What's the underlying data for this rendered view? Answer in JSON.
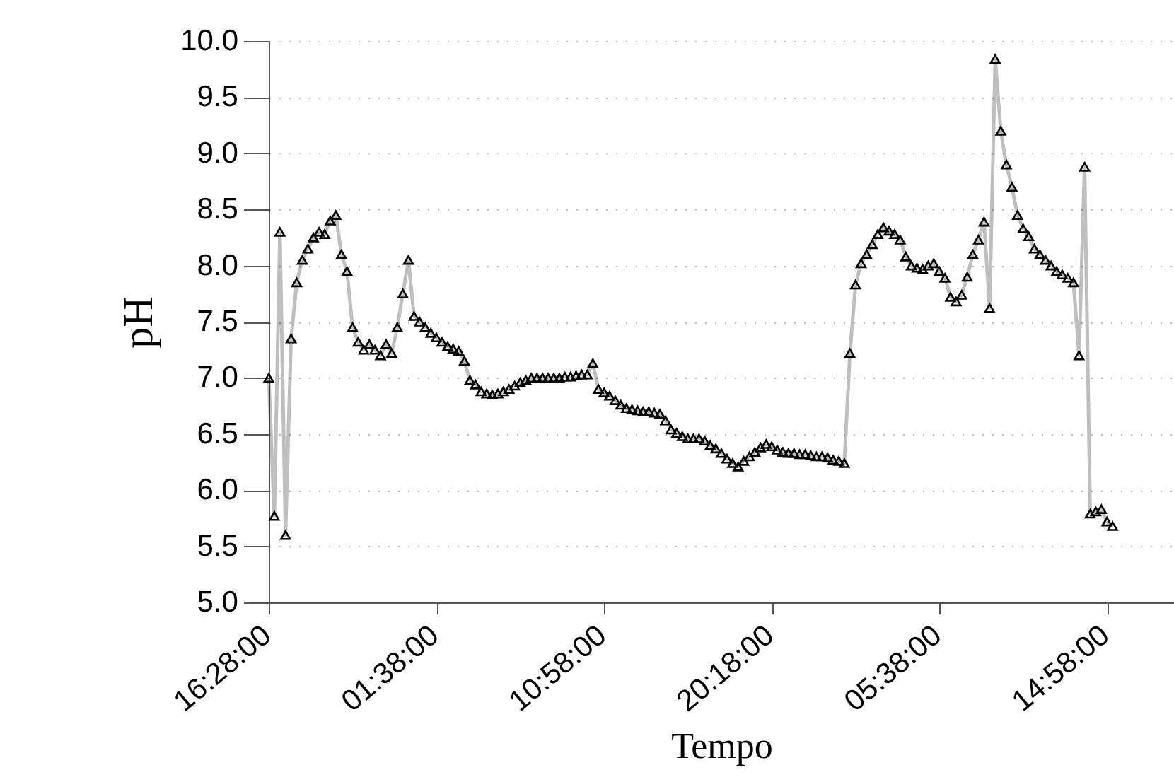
{
  "chart_data": {
    "type": "line",
    "xlabel": "Tempo",
    "ylabel": "pH",
    "categories": [
      "16:28:00",
      null,
      null,
      null,
      null,
      null,
      null,
      null,
      null,
      null,
      null,
      null,
      null,
      null,
      null,
      null,
      null,
      null,
      null,
      null,
      null,
      null,
      null,
      null,
      null,
      null,
      null,
      null,
      null,
      null,
      "01:38:00",
      null,
      null,
      null,
      null,
      null,
      null,
      null,
      null,
      null,
      null,
      null,
      null,
      null,
      null,
      null,
      null,
      null,
      null,
      null,
      null,
      null,
      null,
      null,
      null,
      null,
      null,
      null,
      null,
      null,
      "10:58:00",
      null,
      null,
      null,
      null,
      null,
      null,
      null,
      null,
      null,
      null,
      null,
      null,
      null,
      null,
      null,
      null,
      null,
      null,
      null,
      null,
      null,
      null,
      null,
      null,
      null,
      null,
      null,
      null,
      null,
      "20:18:00",
      null,
      null,
      null,
      null,
      null,
      null,
      null,
      null,
      null,
      null,
      null,
      null,
      null,
      null,
      null,
      null,
      null,
      null,
      null,
      null,
      null,
      null,
      null,
      null,
      null,
      null,
      null,
      null,
      null,
      "05:38:00",
      null,
      null,
      null,
      null,
      null,
      null,
      null,
      null,
      null,
      null,
      null,
      null,
      null,
      null,
      null,
      null,
      null,
      null,
      null,
      null,
      null,
      null,
      null,
      null,
      null,
      null,
      null,
      null,
      null,
      "14:58:00",
      null,
      null,
      null,
      null,
      null,
      null,
      null,
      null,
      null,
      null,
      null,
      null
    ],
    "series": [
      {
        "color": "#000000",
        "values": [
          7.0,
          5.77,
          8.3,
          5.6,
          7.35,
          7.85,
          8.05,
          8.15,
          8.25,
          8.3,
          8.28,
          8.4,
          8.45,
          8.1,
          7.95,
          7.45,
          7.32,
          7.25,
          7.3,
          7.25,
          7.2,
          7.3,
          7.22,
          7.45,
          7.75,
          8.05,
          7.55,
          7.5,
          7.45,
          7.4,
          7.36,
          7.32,
          7.28,
          7.26,
          7.24,
          7.15,
          6.98,
          6.94,
          6.88,
          6.86,
          6.85,
          6.86,
          6.88,
          6.9,
          6.93,
          6.96,
          6.98,
          7.0,
          7.0,
          7.0,
          7.0,
          7.0,
          7.0,
          7.01,
          7.01,
          7.02,
          7.03,
          7.03,
          7.13,
          6.9,
          6.87,
          6.84,
          6.8,
          6.76,
          6.73,
          6.72,
          6.71,
          6.7,
          6.7,
          6.69,
          6.68,
          6.62,
          6.54,
          6.51,
          6.48,
          6.46,
          6.46,
          6.46,
          6.44,
          6.4,
          6.37,
          6.33,
          6.28,
          6.24,
          6.21,
          6.26,
          6.3,
          6.34,
          6.38,
          6.41,
          6.39,
          6.36,
          6.34,
          6.33,
          6.33,
          6.32,
          6.32,
          6.31,
          6.3,
          6.3,
          6.29,
          6.27,
          6.26,
          6.24,
          7.22,
          7.83,
          8.02,
          8.1,
          8.19,
          8.28,
          8.34,
          8.31,
          8.28,
          8.23,
          8.08,
          8.0,
          7.98,
          7.97,
          8.0,
          8.02,
          7.95,
          7.89,
          7.72,
          7.68,
          7.74,
          7.9,
          8.1,
          8.23,
          8.39,
          7.62,
          9.84,
          9.2,
          8.9,
          8.7,
          8.45,
          8.33,
          8.26,
          8.15,
          8.1,
          8.05,
          8.0,
          7.95,
          7.92,
          7.89,
          7.85,
          7.2,
          8.88,
          5.79,
          5.81,
          5.83,
          5.72,
          5.68,
          null,
          null,
          null,
          null,
          null,
          null,
          null,
          null,
          null,
          null,
          null
        ]
      }
    ],
    "ylim": [
      5,
      10
    ],
    "yticks": [
      {
        "value": 5,
        "label": "5.0"
      },
      {
        "value": 5.5,
        "label": "5.5"
      },
      {
        "value": 6,
        "label": "6.0"
      },
      {
        "value": 6.5,
        "label": "6.5"
      },
      {
        "value": 7,
        "label": "7.0"
      },
      {
        "value": 7.5,
        "label": "7.5"
      },
      {
        "value": 8,
        "label": "8.0"
      },
      {
        "value": 8.5,
        "label": "8.5"
      },
      {
        "value": 9,
        "label": "9.0"
      },
      {
        "value": 9.5,
        "label": "9.5"
      },
      {
        "value": 10,
        "label": "10.0"
      }
    ],
    "grid": "y",
    "marker": "triangle",
    "line_style": "solid"
  }
}
